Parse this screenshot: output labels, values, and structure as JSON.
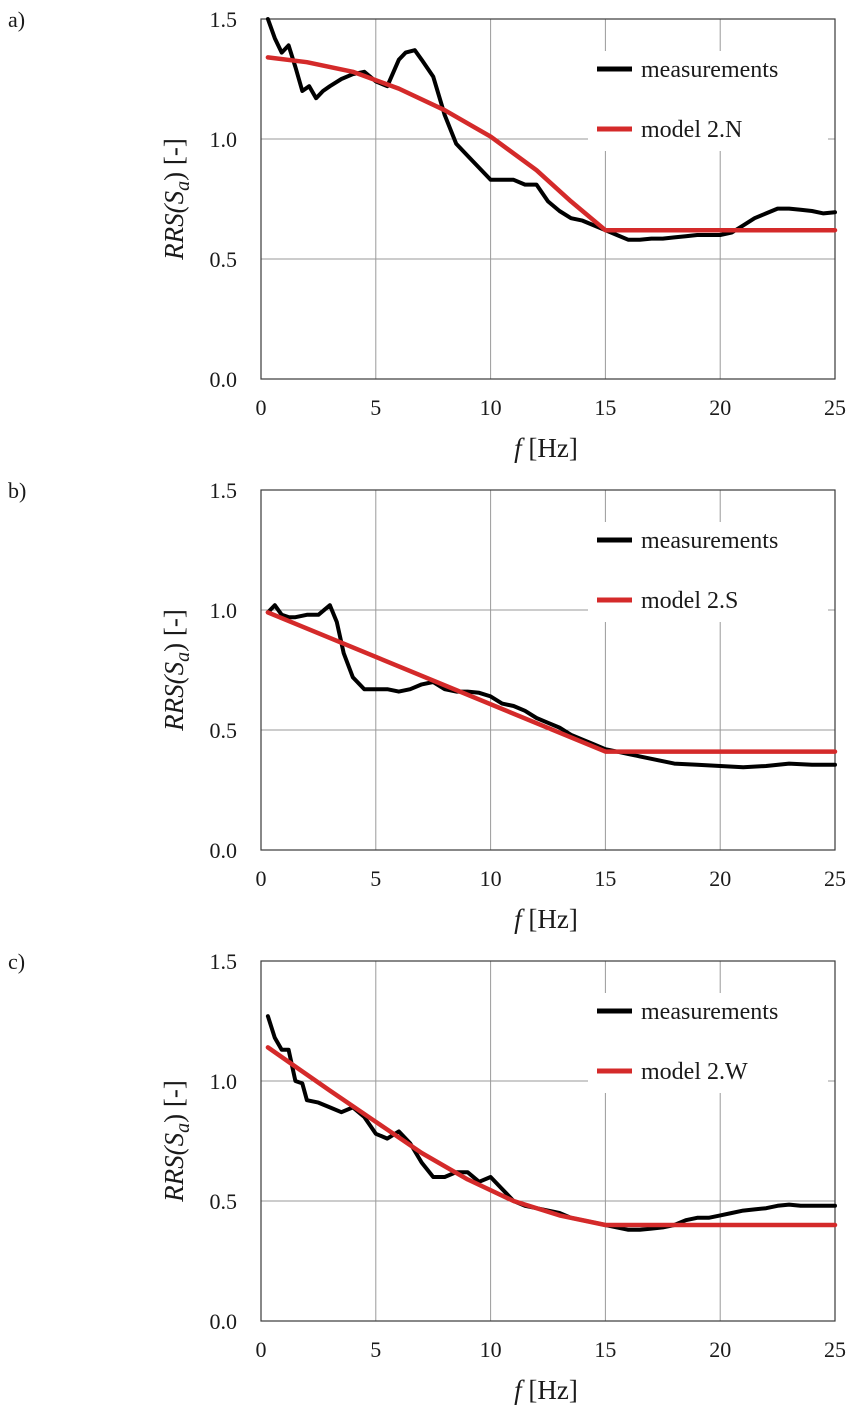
{
  "chart_data": [
    {
      "panel": "a)",
      "type": "line",
      "xlabel": {
        "var": "f",
        "unit": " [Hz]"
      },
      "ylabel": {
        "pre": "RRS(S",
        "sub": "a",
        "post": ") [-]"
      },
      "xlim": [
        0,
        25
      ],
      "ylim": [
        0,
        1.5
      ],
      "xticks": [
        "0",
        "5",
        "10",
        "15",
        "20",
        "25"
      ],
      "yticks": [
        "0.0",
        "0.5",
        "1.0",
        "1.5"
      ],
      "grid": true,
      "legend_position": "top-right",
      "series": [
        {
          "name": "measurements",
          "color": "#000000",
          "x": [
            0.3,
            0.6,
            0.9,
            1.2,
            1.5,
            1.8,
            2.1,
            2.4,
            2.7,
            3.0,
            3.5,
            4.0,
            4.5,
            5.0,
            5.5,
            6.0,
            6.3,
            6.7,
            7.0,
            7.5,
            8.0,
            8.5,
            9.0,
            9.5,
            10.0,
            10.5,
            11.0,
            11.5,
            12.0,
            12.5,
            13.0,
            13.5,
            14.0,
            14.5,
            15.0,
            15.5,
            16.0,
            16.5,
            17.0,
            17.5,
            18.0,
            18.5,
            19.0,
            19.5,
            20.0,
            20.5,
            21.0,
            21.5,
            22.0,
            22.5,
            23.0,
            23.5,
            24.0,
            24.5,
            25.0
          ],
          "values": [
            1.5,
            1.42,
            1.36,
            1.39,
            1.3,
            1.2,
            1.22,
            1.17,
            1.2,
            1.22,
            1.25,
            1.27,
            1.28,
            1.24,
            1.22,
            1.33,
            1.36,
            1.37,
            1.33,
            1.26,
            1.1,
            0.98,
            0.93,
            0.88,
            0.83,
            0.83,
            0.83,
            0.81,
            0.81,
            0.74,
            0.7,
            0.67,
            0.66,
            0.64,
            0.62,
            0.6,
            0.58,
            0.58,
            0.585,
            0.585,
            0.59,
            0.595,
            0.6,
            0.6,
            0.6,
            0.61,
            0.64,
            0.67,
            0.69,
            0.71,
            0.71,
            0.705,
            0.7,
            0.69,
            0.695
          ]
        },
        {
          "name": "model 2.N",
          "color": "#d42a2a",
          "x": [
            0.3,
            2,
            4,
            6,
            8,
            10,
            12,
            13.5,
            15,
            25
          ],
          "values": [
            1.34,
            1.32,
            1.28,
            1.21,
            1.12,
            1.01,
            0.87,
            0.74,
            0.62,
            0.62
          ]
        }
      ]
    },
    {
      "panel": "b)",
      "type": "line",
      "xlabel": {
        "var": "f",
        "unit": " [Hz]"
      },
      "ylabel": {
        "pre": "RRS(S",
        "sub": "a",
        "post": ") [-]"
      },
      "xlim": [
        0,
        25
      ],
      "ylim": [
        0,
        1.5
      ],
      "xticks": [
        "0",
        "5",
        "10",
        "15",
        "20",
        "25"
      ],
      "yticks": [
        "0.0",
        "0.5",
        "1.0",
        "1.5"
      ],
      "grid": true,
      "legend_position": "top-right",
      "series": [
        {
          "name": "measurements",
          "color": "#000000",
          "x": [
            0.3,
            0.6,
            0.9,
            1.2,
            1.5,
            2.0,
            2.5,
            3.0,
            3.3,
            3.6,
            4.0,
            4.5,
            5.0,
            5.5,
            6.0,
            6.5,
            7.0,
            7.5,
            8.0,
            8.5,
            9.0,
            9.5,
            10.0,
            10.5,
            11.0,
            11.5,
            12.0,
            12.5,
            13.0,
            13.5,
            14.0,
            14.5,
            15.0,
            15.5,
            16.0,
            16.5,
            17.0,
            17.5,
            18.0,
            19.0,
            20.0,
            21.0,
            22.0,
            23.0,
            24.0,
            25.0
          ],
          "values": [
            0.99,
            1.02,
            0.98,
            0.97,
            0.97,
            0.98,
            0.98,
            1.02,
            0.95,
            0.82,
            0.72,
            0.67,
            0.67,
            0.67,
            0.66,
            0.67,
            0.69,
            0.7,
            0.67,
            0.66,
            0.66,
            0.655,
            0.64,
            0.61,
            0.6,
            0.58,
            0.55,
            0.53,
            0.51,
            0.48,
            0.46,
            0.44,
            0.42,
            0.41,
            0.4,
            0.39,
            0.38,
            0.37,
            0.36,
            0.355,
            0.35,
            0.345,
            0.35,
            0.36,
            0.355,
            0.355
          ]
        },
        {
          "name": "model 2.S",
          "color": "#d42a2a",
          "x": [
            0.3,
            15,
            25
          ],
          "values": [
            0.99,
            0.41,
            0.41
          ]
        }
      ]
    },
    {
      "panel": "c)",
      "type": "line",
      "xlabel": {
        "var": "f",
        "unit": " [Hz]"
      },
      "ylabel": {
        "pre": "RRS(S",
        "sub": "a",
        "post": ") [-]"
      },
      "xlim": [
        0,
        25
      ],
      "ylim": [
        0,
        1.5
      ],
      "xticks": [
        "0",
        "5",
        "10",
        "15",
        "20",
        "25"
      ],
      "yticks": [
        "0.0",
        "0.5",
        "1.0",
        "1.5"
      ],
      "grid": true,
      "legend_position": "top-right",
      "series": [
        {
          "name": "measurements",
          "color": "#000000",
          "x": [
            0.3,
            0.6,
            0.9,
            1.2,
            1.5,
            1.8,
            2.0,
            2.5,
            3.0,
            3.5,
            4.0,
            4.5,
            5.0,
            5.5,
            6.0,
            6.5,
            7.0,
            7.5,
            8.0,
            8.5,
            9.0,
            9.5,
            10.0,
            10.5,
            11.0,
            11.5,
            12.0,
            12.5,
            13.0,
            13.5,
            14.0,
            14.5,
            15.0,
            15.5,
            16.0,
            16.5,
            17.0,
            17.5,
            18.0,
            18.5,
            19.0,
            19.5,
            20.0,
            20.5,
            21.0,
            21.5,
            22.0,
            22.5,
            23.0,
            23.5,
            24.0,
            24.5,
            25.0
          ],
          "values": [
            1.27,
            1.18,
            1.13,
            1.13,
            1.0,
            0.99,
            0.92,
            0.91,
            0.89,
            0.87,
            0.89,
            0.85,
            0.78,
            0.76,
            0.79,
            0.74,
            0.66,
            0.6,
            0.6,
            0.62,
            0.62,
            0.58,
            0.6,
            0.55,
            0.5,
            0.48,
            0.47,
            0.46,
            0.45,
            0.43,
            0.42,
            0.41,
            0.4,
            0.39,
            0.38,
            0.38,
            0.385,
            0.39,
            0.4,
            0.42,
            0.43,
            0.43,
            0.44,
            0.45,
            0.46,
            0.465,
            0.47,
            0.48,
            0.485,
            0.48,
            0.48,
            0.48,
            0.48
          ]
        },
        {
          "name": "model 2.W",
          "color": "#d42a2a",
          "x": [
            0.3,
            1.5,
            3,
            5,
            7,
            9,
            11,
            13,
            15,
            25
          ],
          "values": [
            1.14,
            1.06,
            0.96,
            0.83,
            0.7,
            0.59,
            0.5,
            0.44,
            0.4,
            0.4
          ]
        }
      ]
    }
  ]
}
